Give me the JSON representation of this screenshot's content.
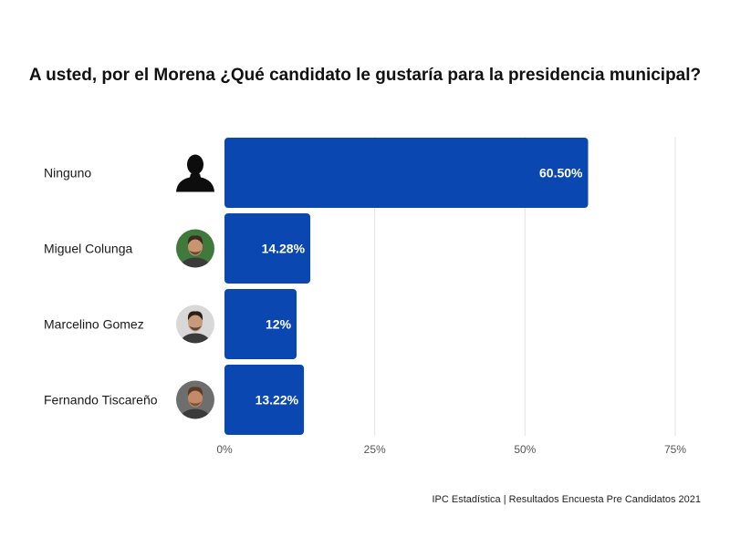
{
  "chart_data": {
    "type": "bar",
    "orientation": "horizontal",
    "title": "A usted, por el Morena ¿Qué candidato le gustaría para la presidencia municipal?",
    "categories": [
      "Ninguno",
      "Miguel Colunga",
      "Marcelino Gomez",
      "Fernando Tiscareño"
    ],
    "values": [
      60.5,
      14.28,
      12,
      13.22
    ],
    "value_labels": [
      "60.50%",
      "14.28%",
      "12%",
      "13.22%"
    ],
    "xlim": [
      0,
      75
    ],
    "xticks": [
      0,
      25,
      50,
      75
    ],
    "xtick_labels": [
      "0%",
      "25%",
      "50%",
      "75%"
    ],
    "grid": true,
    "bar_color": "#0a47b0",
    "grid_color": "#e3e3e3",
    "avatars": [
      {
        "icon": "person-silhouette-icon",
        "kind": "silhouette"
      },
      {
        "icon": "candidate-photo-icon",
        "kind": "photo",
        "bg": "#3f7a3c",
        "skin": "#c9946f",
        "hair": "#3a2a20"
      },
      {
        "icon": "candidate-photo-icon",
        "kind": "photo",
        "bg": "#d8d8d8",
        "skin": "#c99a7a",
        "hair": "#2a201a"
      },
      {
        "icon": "candidate-photo-icon",
        "kind": "photo",
        "bg": "#6e6e6e",
        "skin": "#c48a68",
        "hair": "#5a3a24"
      }
    ]
  },
  "footer": "IPC Estadística | Resultados Encuesta Pre Candidatos 2021"
}
